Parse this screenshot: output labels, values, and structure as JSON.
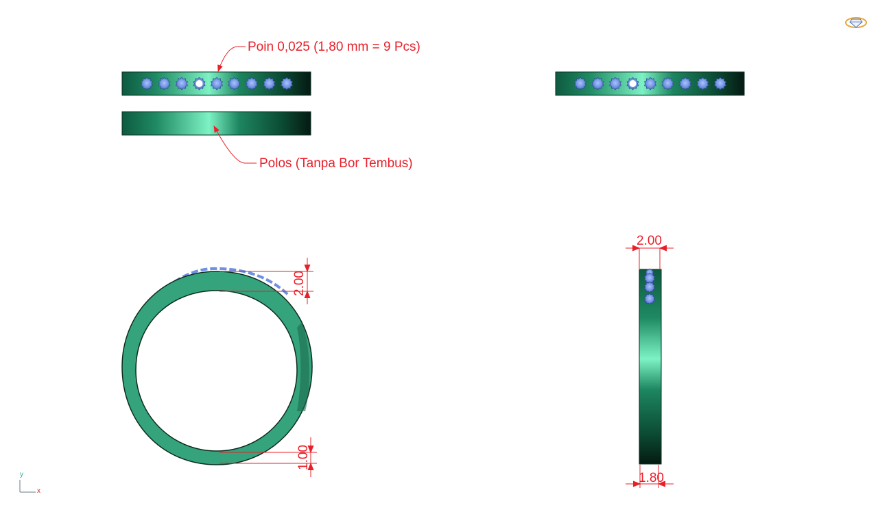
{
  "annotations": {
    "stone_note": "Poin  0,025 (1,80 mm = 9 Pcs)",
    "plain_note": "Polos (Tanpa Bor Tembus)"
  },
  "dimensions": {
    "top_thickness": "2.00",
    "bottom_thickness": "1.00",
    "side_width": "2.00",
    "side_bottom_width": "1.80"
  },
  "axis": {
    "y": "y",
    "x": "x"
  },
  "stones": {
    "count": 9
  },
  "colors": {
    "band_dark": "#0b3b2a",
    "band_mid": "#1f7a57",
    "band_light": "#7df2c4",
    "ring_face": "#35a37c",
    "stone": "#6f8fe0",
    "dimension": "#e8202a"
  },
  "icons": {
    "logo": "diamond-ring-icon"
  }
}
